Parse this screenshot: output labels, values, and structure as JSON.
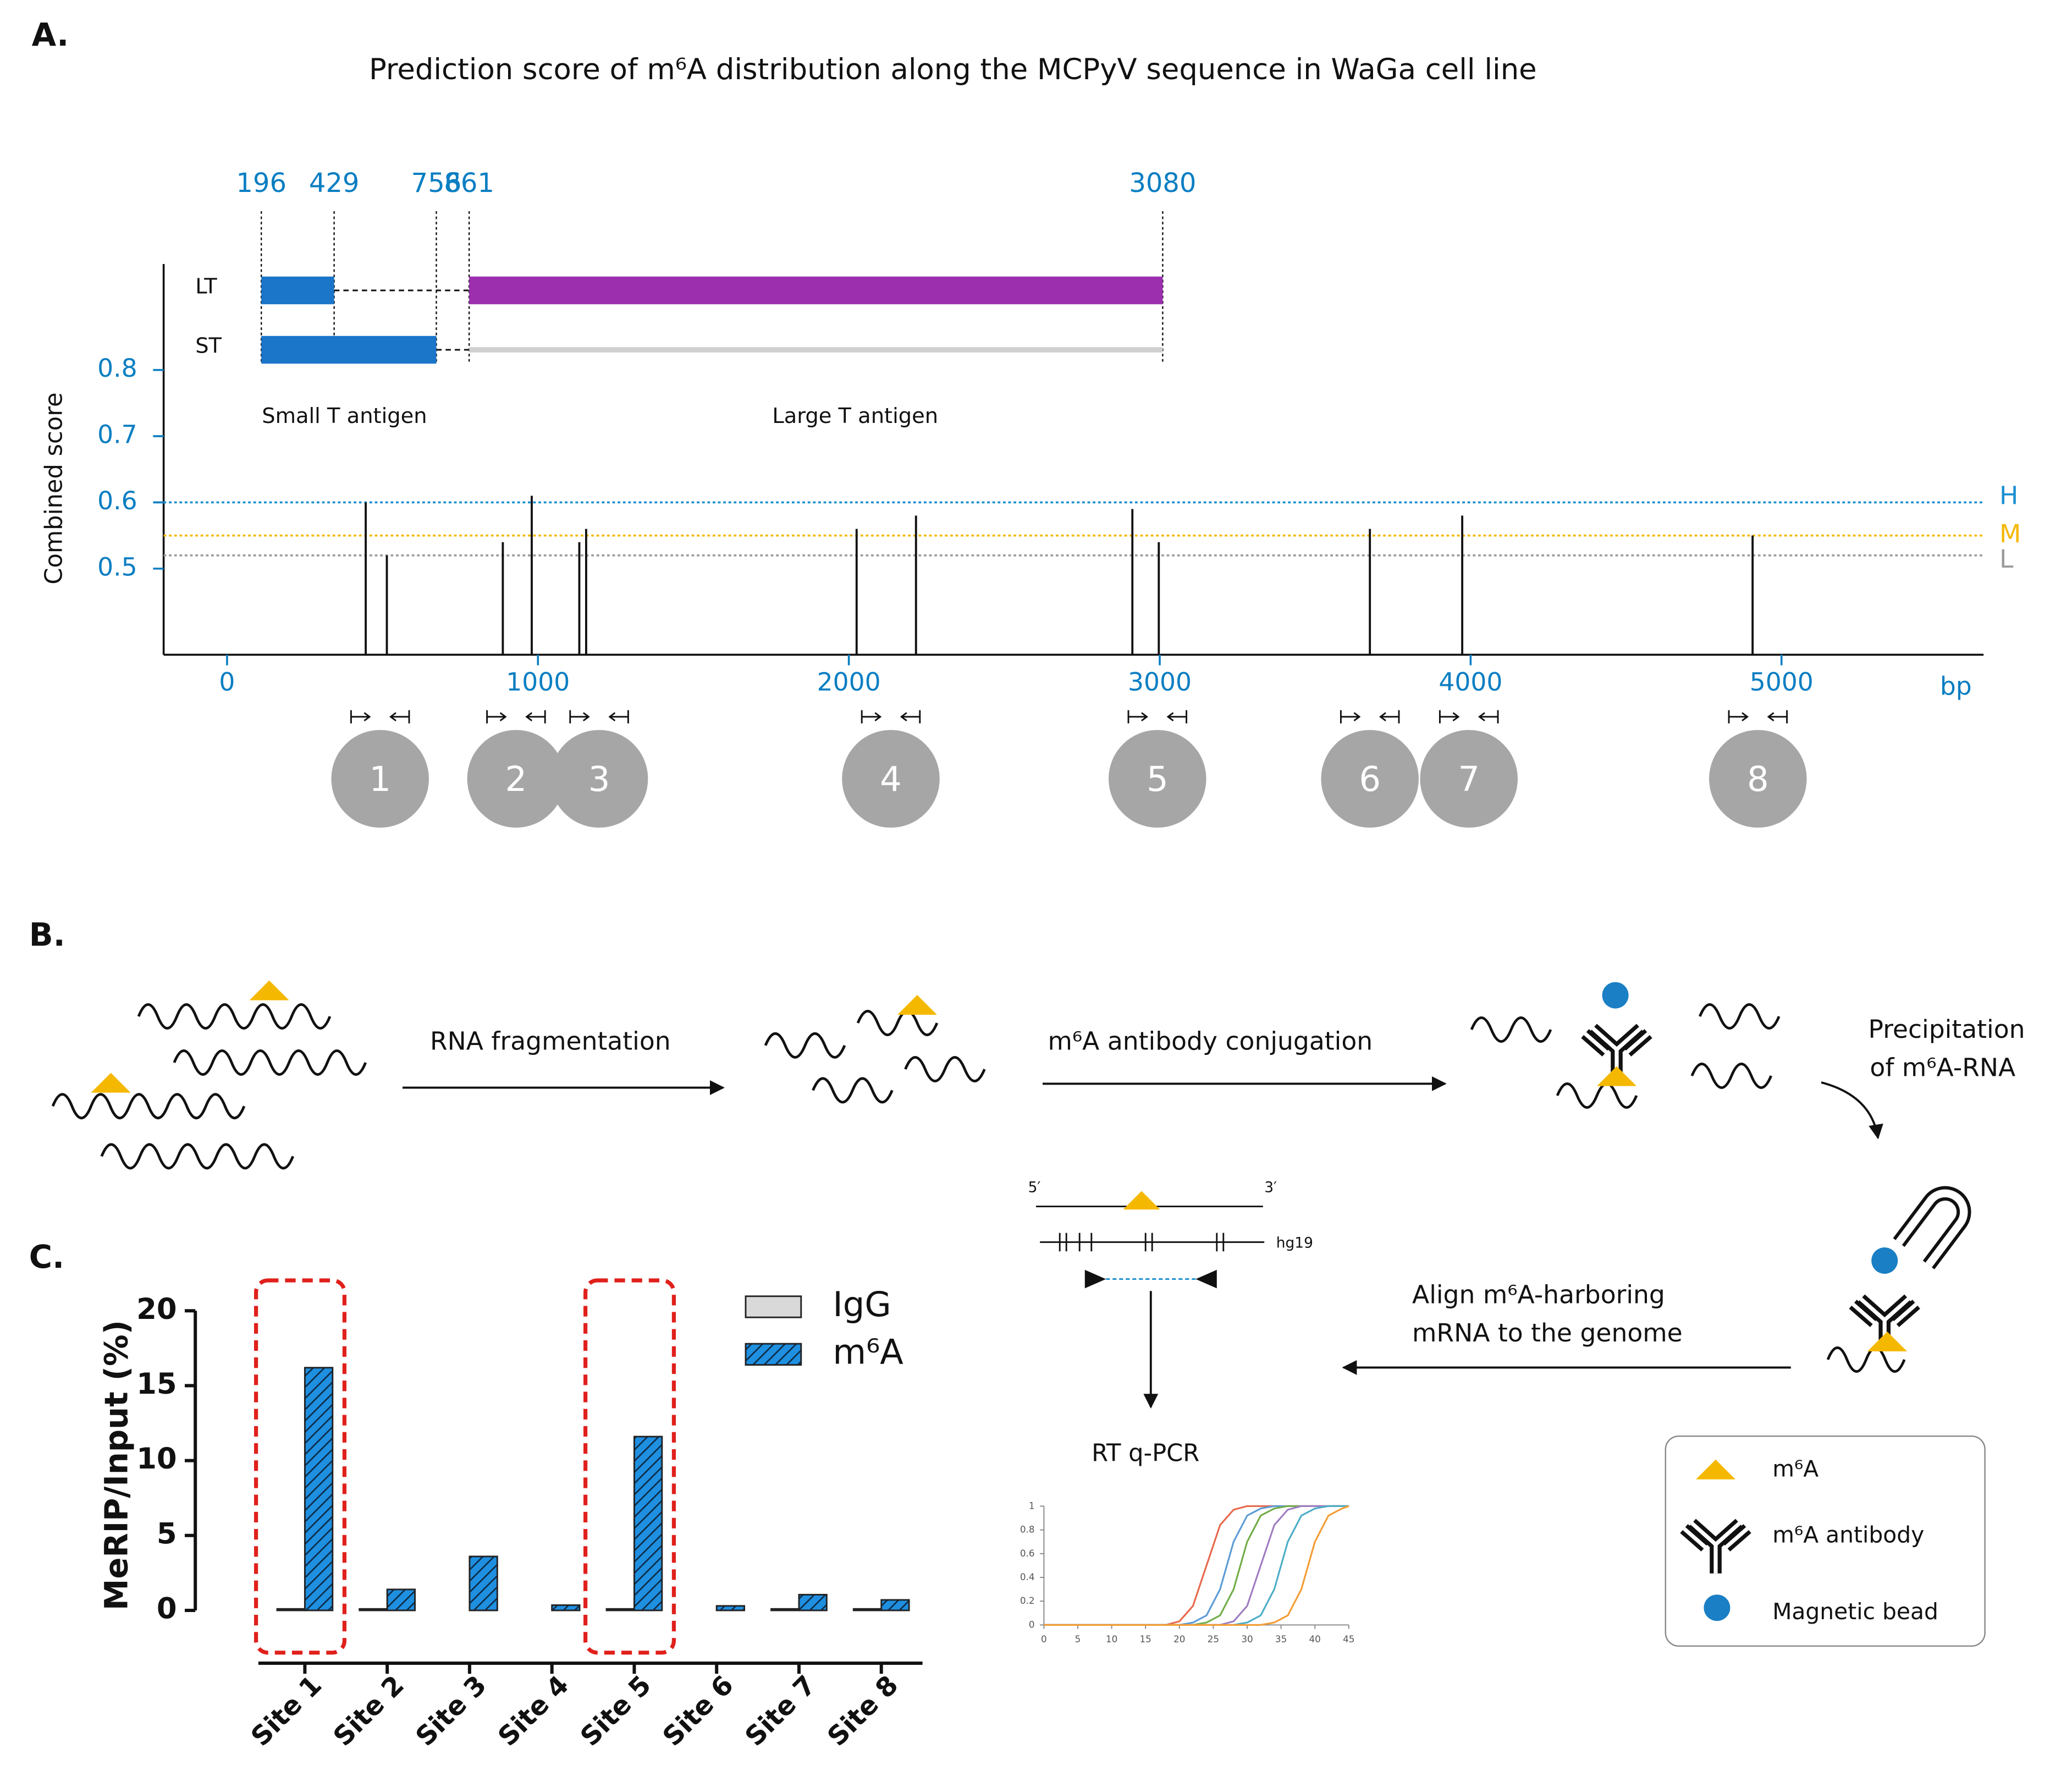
{
  "panels": [
    "A.",
    "B.",
    "C."
  ],
  "chart_data": [
    {
      "type": "stem",
      "title": "Prediction score of m⁶A distribution along the MCPyV sequence in WaGa cell line",
      "ylabel": "Combined score",
      "xlabel": "bp",
      "x": [
        446,
        514,
        887,
        980,
        1133,
        1155,
        2025,
        2216,
        2912,
        2997,
        3676,
        3973,
        4907
      ],
      "values": [
        0.6,
        0.52,
        0.54,
        0.61,
        0.54,
        0.56,
        0.56,
        0.58,
        0.59,
        0.54,
        0.56,
        0.58,
        0.55
      ],
      "color": "#111111",
      "tick_color": "#0a7ec2",
      "xlim": [
        -204,
        5650
      ],
      "ylim": [
        0.37,
        0.96
      ],
      "xticks": [
        0,
        1000,
        2000,
        3000,
        4000,
        5000
      ],
      "yticks": [
        0.5,
        0.6,
        0.7,
        0.8
      ],
      "thresholds": [
        {
          "name": "H",
          "value": 0.6,
          "color": "#1a8fd0"
        },
        {
          "name": "M",
          "value": 0.55,
          "color": "#f5b800"
        },
        {
          "name": "L",
          "value": 0.52,
          "color": "#9a9a9a"
        }
      ]
    },
    {
      "type": "bar",
      "ylabel": "MeRIP/Input (%)",
      "categories": [
        "Site 1",
        "Site 2",
        "Site 3",
        "Site 4",
        "Site 5",
        "Site 6",
        "Site 7",
        "Site 8"
      ],
      "series": [
        {
          "name": "IgG",
          "color": "#d9d9d9",
          "values": [
            0.1,
            0.1,
            0,
            0,
            0.1,
            0,
            0.1,
            0.1
          ]
        },
        {
          "name": "m⁶A",
          "color": "#1f8fe0",
          "hatch": true,
          "values": [
            16.2,
            1.4,
            3.6,
            0.35,
            11.6,
            0.3,
            1.05,
            0.7
          ]
        }
      ],
      "ylim": [
        0,
        20
      ],
      "yticks": [
        0,
        5,
        10,
        15,
        20
      ],
      "legend": "top-right",
      "highlight": [
        "Site 1",
        "Site 5"
      ]
    },
    {
      "type": "line",
      "x": [
        0,
        16,
        18,
        20,
        22,
        24,
        26,
        28,
        30,
        32,
        34,
        36,
        38,
        40,
        42,
        44,
        45
      ],
      "series": [
        {
          "color": "#e8684a",
          "values": [
            0,
            0,
            0,
            0.03,
            0.16,
            0.5,
            0.84,
            0.97,
            1,
            1,
            1,
            1,
            1,
            1,
            1,
            1,
            1
          ]
        },
        {
          "color": "#5b9bd5",
          "values": [
            0,
            0,
            0,
            0,
            0.02,
            0.08,
            0.3,
            0.7,
            0.92,
            0.98,
            1,
            1,
            1,
            1,
            1,
            1,
            1
          ]
        },
        {
          "color": "#70ad47",
          "values": [
            0,
            0,
            0,
            0,
            0,
            0.02,
            0.08,
            0.3,
            0.7,
            0.92,
            0.98,
            1,
            1,
            1,
            1,
            1,
            1
          ]
        },
        {
          "color": "#9e7cc1",
          "values": [
            0,
            0,
            0,
            0,
            0,
            0,
            0,
            0.03,
            0.16,
            0.5,
            0.84,
            0.97,
            1,
            1,
            1,
            1,
            1
          ]
        },
        {
          "color": "#4bacc6",
          "values": [
            0,
            0,
            0,
            0,
            0,
            0,
            0,
            0,
            0.02,
            0.08,
            0.3,
            0.7,
            0.92,
            0.98,
            1,
            1,
            1
          ]
        },
        {
          "color": "#f39c34",
          "values": [
            0,
            0,
            0,
            0,
            0,
            0,
            0,
            0,
            0,
            0,
            0.02,
            0.08,
            0.3,
            0.7,
            0.92,
            0.98,
            1
          ]
        }
      ],
      "xlim": [
        0,
        45
      ],
      "ylim": [
        0,
        1
      ],
      "xticks": [
        0,
        5,
        10,
        15,
        20,
        25,
        30,
        35,
        40,
        45
      ],
      "yticks": [
        0,
        0.2,
        0.4,
        0.6,
        0.8,
        1
      ]
    }
  ],
  "gene_map": {
    "markers": [
      196,
      429,
      756,
      861,
      3080
    ],
    "tracks": [
      {
        "name": "LT",
        "segments": [
          {
            "range": [
              196,
              429
            ],
            "color": "#1b75c9"
          },
          {
            "range": [
              861,
              3080
            ],
            "color": "#9b2fae"
          }
        ]
      },
      {
        "name": "ST",
        "segments": [
          {
            "range": [
              196,
              756
            ],
            "color": "#1b75c9"
          },
          {
            "range": [
              861,
              3080
            ],
            "color": "#d0d0d0",
            "thin": true
          }
        ]
      }
    ],
    "regions": [
      "Small T antigen",
      "Large T antigen"
    ]
  },
  "sites": [
    "1",
    "2",
    "3",
    "4",
    "5",
    "6",
    "7",
    "8"
  ],
  "workflow": {
    "fragmentation": "RNA fragmentation",
    "conjugation": "m⁶A antibody conjugation",
    "precipitation": [
      "Precipitation",
      "of m⁶A-RNA"
    ],
    "align": [
      "Align m⁶A-harboring",
      "mRNA to the genome"
    ],
    "five_prime": "5′",
    "three_prime": "3′",
    "genome": "hg19",
    "assay": "RT q-PCR"
  },
  "legend": [
    "m⁶A",
    "m⁶A antibody",
    "Magnetic bead"
  ]
}
